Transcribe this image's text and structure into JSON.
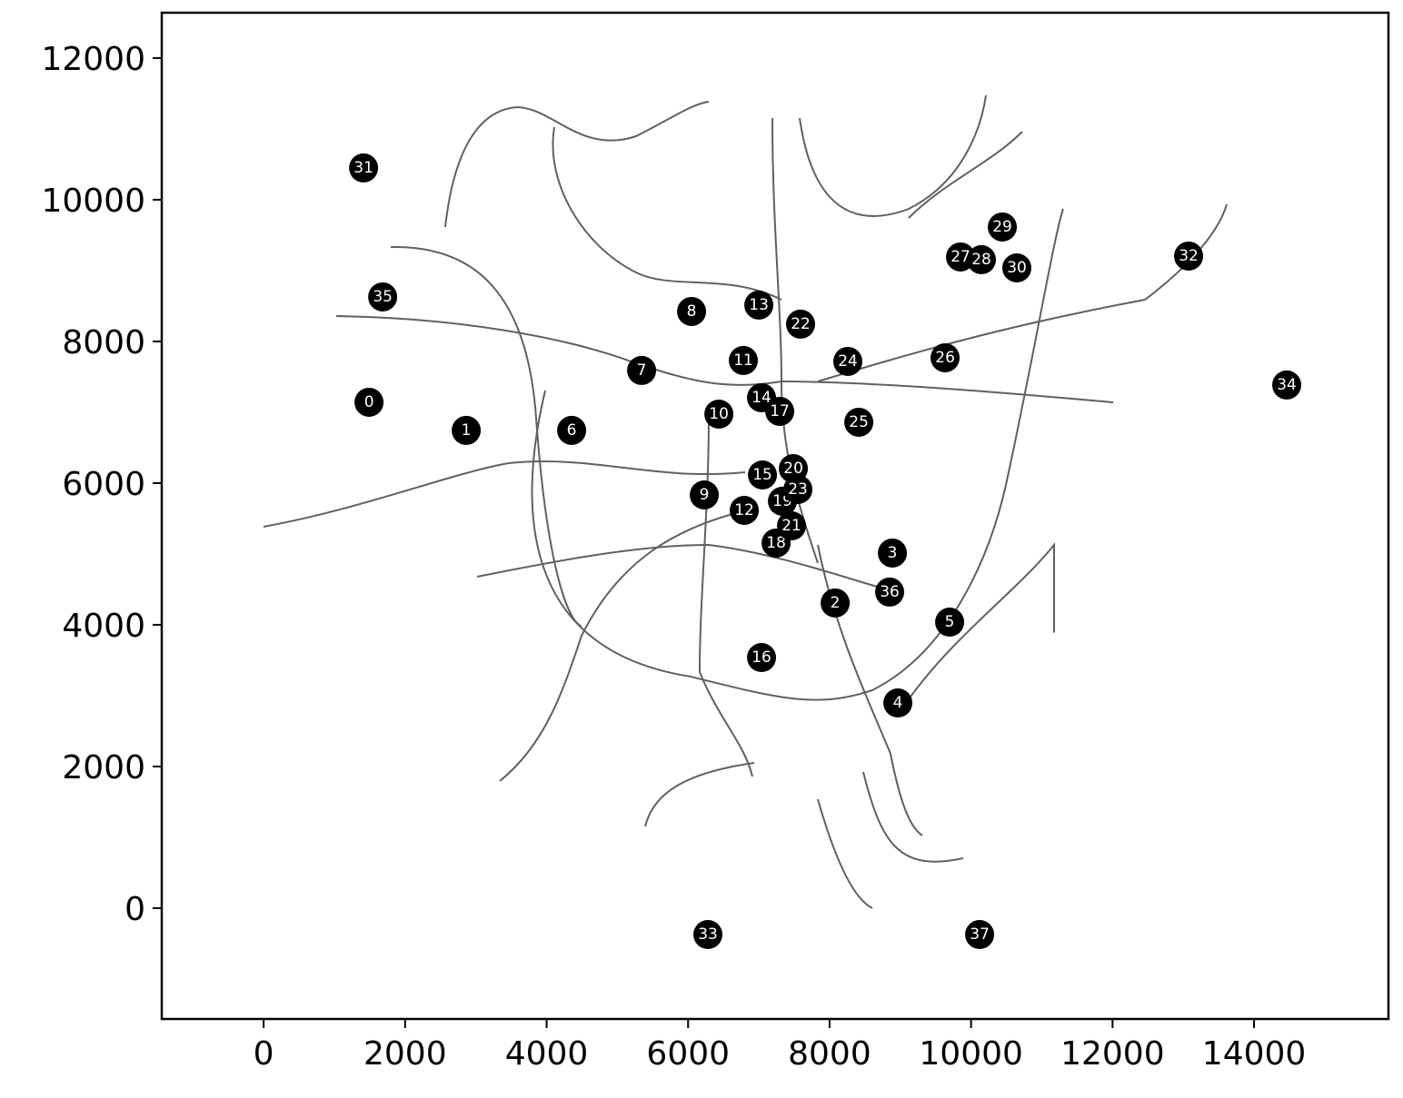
{
  "chart_data": {
    "type": "scatter",
    "x": [
      1490,
      2864,
      8079,
      8888,
      8965,
      9697,
      4354,
      5343,
      6049,
      6229,
      6435,
      6781,
      6794,
      7000,
      7038,
      7051,
      7038,
      7295,
      7244,
      7334,
      7488,
      7462,
      7590,
      7552,
      8258,
      8413,
      9633,
      9851,
      10146,
      10442,
      10647,
      1413,
      13075,
      6280,
      14462,
      1683,
      8849,
      10121
    ],
    "y": [
      7141,
      6744,
      4308,
      5013,
      2897,
      4038,
      6744,
      7590,
      8423,
      5833,
      6974,
      7731,
      5615,
      8513,
      7205,
      6115,
      3538,
      7013,
      5154,
      5744,
      6205,
      5397,
      8244,
      5910,
      7718,
      6859,
      7769,
      9192,
      9154,
      9615,
      9038,
      10449,
      9205,
      -372,
      7385,
      8628,
      4462,
      -372
    ],
    "labels": [
      "0",
      "1",
      "2",
      "3",
      "4",
      "5",
      "6",
      "7",
      "8",
      "9",
      "10",
      "11",
      "12",
      "13",
      "14",
      "15",
      "16",
      "17",
      "18",
      "19",
      "20",
      "21",
      "22",
      "23",
      "24",
      "25",
      "26",
      "27",
      "28",
      "29",
      "30",
      "31",
      "32",
      "33",
      "34",
      "35",
      "36",
      "37"
    ],
    "color": "#000000",
    "xlim": [
      -1440,
      15900
    ],
    "ylim": [
      -1564,
      12640
    ],
    "xticks": [
      0,
      2000,
      4000,
      6000,
      8000,
      10000,
      12000,
      14000
    ],
    "yticks": [
      0,
      2000,
      4000,
      6000,
      8000,
      10000,
      12000
    ]
  }
}
